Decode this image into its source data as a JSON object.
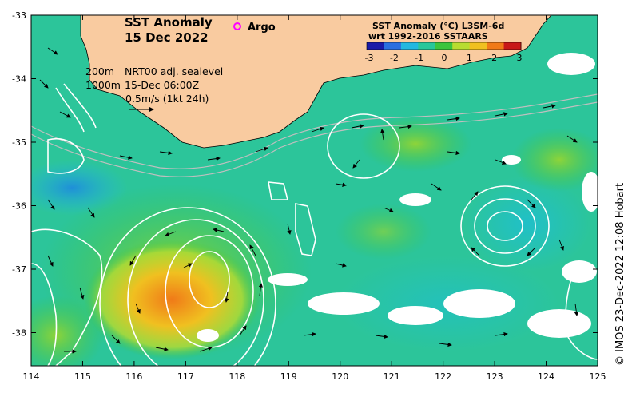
{
  "map": {
    "title_line1": "SST Anomaly",
    "title_line2": "15 Dec 2022",
    "argo_label": "Argo",
    "contour_line1": "200m",
    "contour_line2": "1000m",
    "sealevel_line1": "NRT00 adj. sealevel",
    "sealevel_line2": "15-Dec 06:00Z",
    "velocity_scale": "0.5m/s (1kt 24h)",
    "colorbar_title1": "SST Anomaly (°C) L3SM-6d",
    "colorbar_title2": "wrt 1992-2016 SSTAARS",
    "colorbar_ticks": [
      "-3",
      "-2",
      "-1",
      "0",
      "1",
      "2",
      "3"
    ],
    "colorbar_colors": [
      "#1a1aa8",
      "#2a6fe0",
      "#22b8e0",
      "#28c79a",
      "#3cc43c",
      "#b8dc30",
      "#f0c020",
      "#f07a18",
      "#c81818"
    ],
    "credit": "© IMOS 23-Dec-2022 12:08 Hobart",
    "lon_ticks": [
      "114",
      "115",
      "116",
      "117",
      "118",
      "119",
      "120",
      "121",
      "122",
      "123",
      "124",
      "125"
    ],
    "lat_ticks": [
      "-33",
      "-34",
      "-35",
      "-36",
      "-37",
      "-38"
    ],
    "land_color": "#f9cba0",
    "ocean_color": "#2cc59a",
    "argo_color": "#ff00ff"
  }
}
